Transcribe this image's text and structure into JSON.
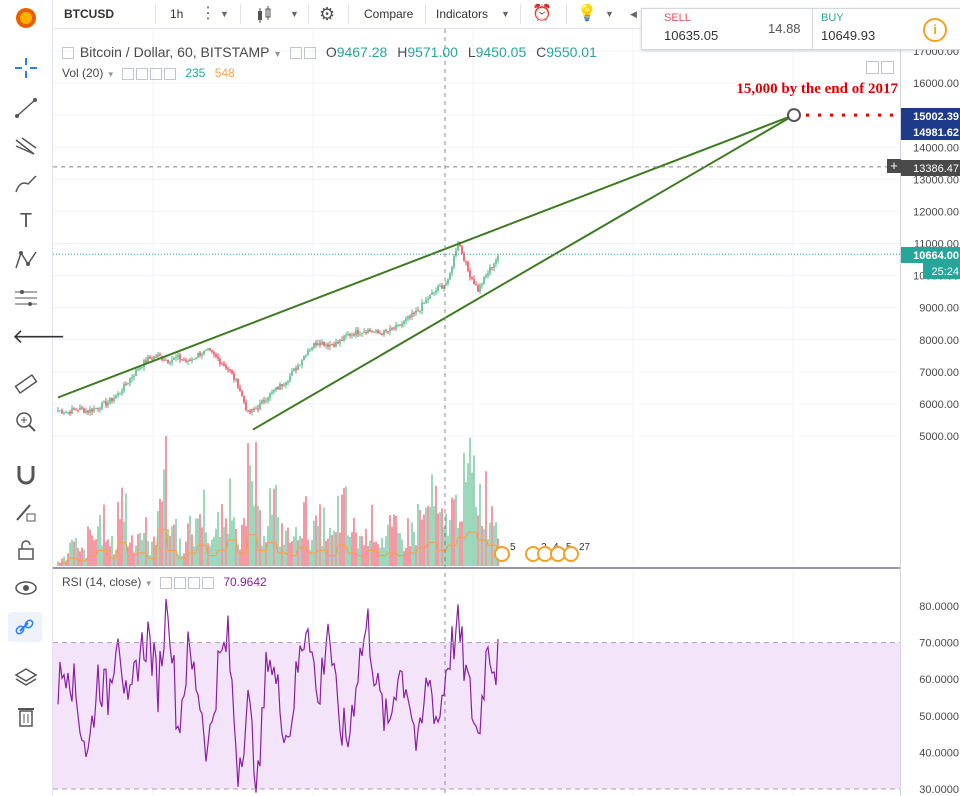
{
  "toolbar": {
    "symbol": "BTCUSD",
    "interval": "1h",
    "compare_label": "Compare",
    "indicators_label": "Indicators"
  },
  "trade": {
    "sell_label": "SELL",
    "sell_price": "10635.05",
    "spread": "14.88",
    "buy_label": "BUY",
    "buy_price": "10649.93"
  },
  "legend": {
    "title": "Bitcoin / Dollar, 60, BITSTAMP",
    "open_label": "O",
    "open": "9467.28",
    "high_label": "H",
    "high": "9571.00",
    "low_label": "L",
    "low": "9450.05",
    "close_label": "C",
    "close": "9550.01",
    "vol_label": "Vol (20)",
    "vol_a": "235",
    "vol_b": "548",
    "rsi_label": "RSI (14, close)",
    "rsi_value": "70.9642"
  },
  "annotation": "15,000 by the end of 2017",
  "price_badges": {
    "target_a": "15002.39",
    "target_b": "14981.62",
    "crosshair": "13386.47",
    "last": "10664.00",
    "countdown": "25:24"
  },
  "events": {
    "e1": "5",
    "e2": "2",
    "e3": "4",
    "e4": "5",
    "e5": "27"
  },
  "colors": {
    "up": "#53b987",
    "down": "#eb4d5c",
    "trend": "#3e7a20",
    "rsi": "#8a1fa3",
    "rsi_band": "#f3e4fa",
    "sell": "#eb4d5c",
    "buy": "#26a69a",
    "annotation": "#e00000",
    "vol_ma": "#f4a24f"
  },
  "chart_data": [
    {
      "type": "candlestick",
      "title": "Bitcoin / Dollar, 60, BITSTAMP",
      "ylim": [
        4500,
        17300
      ],
      "y_ticks": [
        5000,
        6000,
        7000,
        8000,
        9000,
        10000,
        11000,
        12000,
        13000,
        14000,
        15000,
        16000,
        17000
      ],
      "y_tick_labels": [
        "5000.00",
        "6000.00",
        "7000.00",
        "8000.00",
        "9000.00",
        "10000.00",
        "11000.00",
        "12000.00",
        "13000.00",
        "14000.00",
        "15000.00",
        "16000.00",
        "17000.00"
      ],
      "x": [
        0,
        10,
        20,
        30,
        40,
        50,
        60,
        70,
        80,
        90,
        100,
        110,
        120,
        130,
        140,
        150,
        160,
        170,
        180,
        190,
        200,
        210,
        220,
        230,
        240,
        250,
        260,
        270,
        280,
        290,
        300,
        310,
        320,
        330,
        340,
        350,
        360,
        370,
        380,
        390,
        400,
        410,
        420,
        430,
        440
      ],
      "close": [
        5800,
        5750,
        5850,
        5780,
        5900,
        6050,
        6300,
        6700,
        7100,
        7400,
        7500,
        7350,
        7450,
        7300,
        7550,
        7650,
        7400,
        7100,
        6600,
        5700,
        5900,
        6250,
        6500,
        6800,
        7200,
        7700,
        7950,
        7850,
        7900,
        8150,
        8250,
        8300,
        8200,
        8250,
        8400,
        8650,
        8900,
        9300,
        9600,
        9800,
        11100,
        10150,
        9550,
        10100,
        10600
      ],
      "trend_lines": [
        {
          "from": [
            0,
            6200
          ],
          "to": [
            736,
            15002
          ]
        },
        {
          "from": [
            195,
            5200
          ],
          "to": [
            736,
            15002
          ]
        }
      ],
      "target_price": 15002.39
    },
    {
      "type": "bar",
      "title": "Vol (20)",
      "x": [
        0,
        10,
        20,
        30,
        40,
        50,
        60,
        70,
        80,
        90,
        100,
        110,
        120,
        130,
        140,
        150,
        160,
        170,
        180,
        190,
        200,
        210,
        220,
        230,
        240,
        250,
        260,
        270,
        280,
        290,
        300,
        310,
        320,
        330,
        340,
        350,
        360,
        370,
        380,
        390,
        400,
        410,
        420,
        430,
        440
      ],
      "values": [
        1,
        3,
        2,
        4,
        6,
        3,
        9,
        4,
        5,
        3,
        14,
        6,
        3,
        5,
        8,
        4,
        6,
        10,
        5,
        12,
        6,
        9,
        5,
        4,
        7,
        5,
        6,
        4,
        8,
        5,
        4,
        6,
        4,
        5,
        4,
        5,
        7,
        9,
        6,
        8,
        11,
        13,
        10,
        8,
        6
      ]
    },
    {
      "type": "line",
      "title": "RSI (14, close)",
      "ylim": [
        29,
        86
      ],
      "y_ticks": [
        30,
        40,
        50,
        60,
        70,
        80
      ],
      "y_tick_labels": [
        "30.0000",
        "40.0000",
        "50.0000",
        "60.0000",
        "70.0000",
        "80.0000"
      ],
      "band": [
        30,
        70
      ],
      "x": [
        0,
        10,
        20,
        30,
        40,
        50,
        60,
        70,
        80,
        90,
        100,
        110,
        120,
        130,
        140,
        150,
        160,
        170,
        180,
        190,
        200,
        210,
        220,
        230,
        240,
        250,
        260,
        270,
        280,
        290,
        300,
        310,
        320,
        330,
        340,
        350,
        360,
        370,
        380,
        390,
        400,
        410,
        420,
        430,
        440
      ],
      "values": [
        58,
        66,
        52,
        39,
        61,
        55,
        76,
        48,
        66,
        72,
        58,
        83,
        46,
        67,
        58,
        40,
        63,
        71,
        36,
        53,
        31,
        69,
        56,
        44,
        63,
        78,
        52,
        76,
        49,
        43,
        64,
        75,
        56,
        46,
        63,
        58,
        39,
        61,
        48,
        66,
        74,
        58,
        44,
        71,
        60
      ],
      "last": 70.9642
    }
  ]
}
